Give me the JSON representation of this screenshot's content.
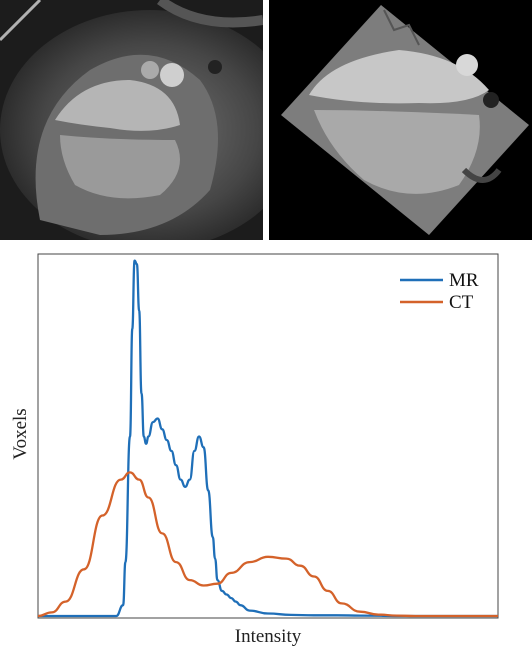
{
  "images": {
    "mr": {
      "alt": "MR cardiac slice"
    },
    "ct": {
      "alt": "CT cardiac slice"
    }
  },
  "chart_data": {
    "type": "line",
    "title": "",
    "xlabel": "Intensity",
    "ylabel": "Voxels",
    "grid": false,
    "legend_position": "top-right",
    "xlim": [
      0,
      1
    ],
    "ylim": [
      0,
      1
    ],
    "series": [
      {
        "name": "MR",
        "color": "#1f6fb8",
        "x": [
          0.0,
          0.17,
          0.185,
          0.19,
          0.2,
          0.205,
          0.21,
          0.215,
          0.22,
          0.225,
          0.23,
          0.235,
          0.24,
          0.25,
          0.26,
          0.27,
          0.28,
          0.29,
          0.3,
          0.31,
          0.32,
          0.33,
          0.34,
          0.35,
          0.36,
          0.37,
          0.38,
          0.385,
          0.39,
          0.4,
          0.41,
          0.42,
          0.43,
          0.44,
          0.46,
          0.5,
          0.55,
          0.6,
          0.65,
          0.7,
          0.8,
          0.9,
          1.0
        ],
        "values": [
          0.0,
          0.0,
          0.03,
          0.15,
          0.5,
          0.8,
          0.99,
          0.98,
          0.85,
          0.62,
          0.5,
          0.48,
          0.5,
          0.54,
          0.55,
          0.52,
          0.49,
          0.46,
          0.42,
          0.38,
          0.36,
          0.38,
          0.46,
          0.5,
          0.47,
          0.35,
          0.22,
          0.16,
          0.1,
          0.07,
          0.06,
          0.05,
          0.04,
          0.03,
          0.015,
          0.007,
          0.003,
          0.002,
          0.002,
          0.001,
          0.0,
          0.0,
          0.0
        ]
      },
      {
        "name": "CT",
        "color": "#d4622a",
        "x": [
          0.0,
          0.03,
          0.06,
          0.1,
          0.14,
          0.18,
          0.2,
          0.22,
          0.24,
          0.27,
          0.3,
          0.33,
          0.36,
          0.39,
          0.42,
          0.46,
          0.5,
          0.54,
          0.57,
          0.6,
          0.63,
          0.66,
          0.7,
          0.74,
          0.78,
          0.82,
          0.86,
          0.9,
          1.0
        ],
        "values": [
          0.0,
          0.01,
          0.04,
          0.13,
          0.28,
          0.38,
          0.4,
          0.38,
          0.33,
          0.23,
          0.15,
          0.1,
          0.085,
          0.09,
          0.12,
          0.15,
          0.165,
          0.16,
          0.14,
          0.11,
          0.07,
          0.035,
          0.012,
          0.004,
          0.001,
          0.0,
          0.0,
          0.0,
          0.0
        ]
      }
    ]
  }
}
